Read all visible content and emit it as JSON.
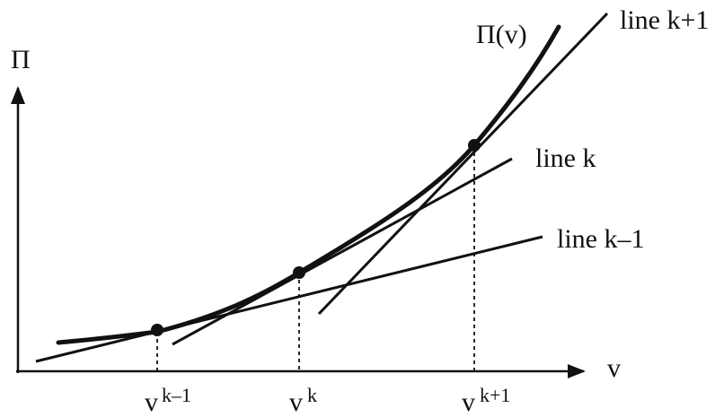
{
  "axes": {
    "y_label": "Π",
    "x_label": "v"
  },
  "curve": {
    "label": "Π(v)"
  },
  "lines": [
    {
      "id": "k-1",
      "label": "line k–1"
    },
    {
      "id": "k",
      "label": "line k"
    },
    {
      "id": "k+1",
      "label": "line k+1"
    }
  ],
  "ticks": [
    {
      "id": "k-1",
      "base": "v",
      "sup": "k–1"
    },
    {
      "id": "k",
      "base": "v",
      "sup": "k"
    },
    {
      "id": "k+1",
      "base": "v",
      "sup": "k+1"
    }
  ],
  "colors": {
    "ink": "#111111",
    "background": "#ffffff"
  }
}
